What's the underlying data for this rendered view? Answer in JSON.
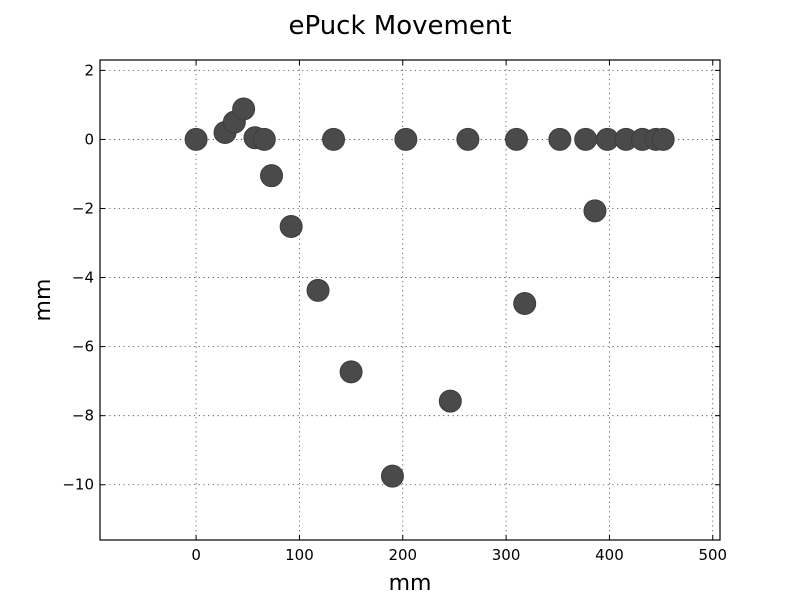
{
  "chart_data": {
    "type": "scatter",
    "title": "ePuck Movement",
    "xlabel": "mm",
    "ylabel": "mm",
    "xlim": [
      -93,
      507
    ],
    "ylim": [
      -11.6,
      2.3
    ],
    "xticks": [
      0,
      100,
      200,
      300,
      400,
      500
    ],
    "yticks": [
      2,
      0,
      -2,
      -4,
      -6,
      -8,
      -10
    ],
    "xtick_labels": [
      "0",
      "100",
      "200",
      "300",
      "400",
      "500"
    ],
    "ytick_labels": [
      "2",
      "0",
      "−2",
      "−4",
      "−6",
      "−8",
      "−10"
    ],
    "grid": true,
    "marker_color": "#4a4a4a",
    "points": [
      {
        "x": 0,
        "y": 0
      },
      {
        "x": 28,
        "y": 0.2
      },
      {
        "x": 37,
        "y": 0.5
      },
      {
        "x": 46,
        "y": 0.88
      },
      {
        "x": 57,
        "y": 0.05
      },
      {
        "x": 66,
        "y": 0
      },
      {
        "x": 73,
        "y": -1.05
      },
      {
        "x": 92,
        "y": -2.52
      },
      {
        "x": 118,
        "y": -4.37
      },
      {
        "x": 133,
        "y": 0
      },
      {
        "x": 150,
        "y": -6.73
      },
      {
        "x": 190,
        "y": -9.75
      },
      {
        "x": 203,
        "y": 0
      },
      {
        "x": 246,
        "y": -7.58
      },
      {
        "x": 263,
        "y": 0
      },
      {
        "x": 310,
        "y": 0
      },
      {
        "x": 318,
        "y": -4.75
      },
      {
        "x": 352,
        "y": 0
      },
      {
        "x": 377,
        "y": 0
      },
      {
        "x": 386,
        "y": -2.07
      },
      {
        "x": 398,
        "y": 0
      },
      {
        "x": 416,
        "y": 0
      },
      {
        "x": 432,
        "y": 0
      },
      {
        "x": 445,
        "y": 0
      },
      {
        "x": 452,
        "y": 0
      }
    ]
  }
}
